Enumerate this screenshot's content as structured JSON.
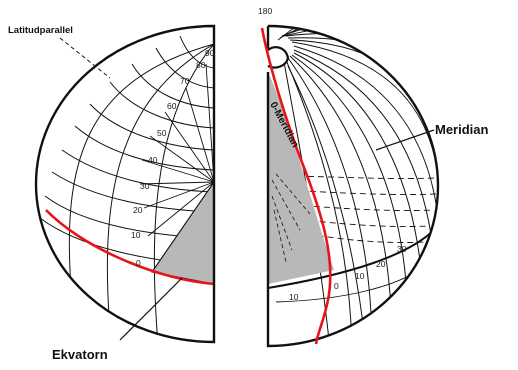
{
  "labels": {
    "latitude_parallel": "Latitudparallel",
    "meridian": "Meridian",
    "equator": "Ekvatorn",
    "zero_meridian": "0-Meridian",
    "degree_180": "180"
  },
  "latitude_degrees": [
    "0",
    "10",
    "20",
    "30",
    "40",
    "50",
    "60",
    "70",
    "80",
    "90"
  ],
  "longitude_degrees": [
    "0",
    "10",
    "20",
    "30"
  ],
  "longitude_degrees_lower": [
    "10"
  ],
  "colors": {
    "outline": "#111111",
    "equator": "#e8141b",
    "shaded": "#b8b8b8",
    "background": "#ffffff"
  }
}
